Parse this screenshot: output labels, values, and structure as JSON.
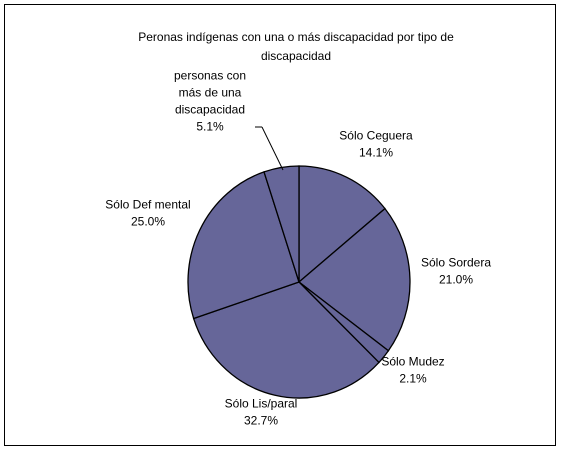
{
  "chart_data": {
    "type": "pie",
    "title_lines": [
      "Peronas indígenas con una o más discapacidad por tipo de",
      "discapacidad"
    ],
    "slices": [
      {
        "label_lines": [
          "Sólo Ceguera"
        ],
        "value": 14.1,
        "value_label": "14.1%"
      },
      {
        "label_lines": [
          "Sólo Sordera"
        ],
        "value": 21.0,
        "value_label": "21.0%"
      },
      {
        "label_lines": [
          "Sólo Mudez"
        ],
        "value": 2.1,
        "value_label": "2.1%"
      },
      {
        "label_lines": [
          "Sólo Lis/paral"
        ],
        "value": 32.7,
        "value_label": "32.7%"
      },
      {
        "label_lines": [
          "Sólo Def mental"
        ],
        "value": 25.0,
        "value_label": "25.0%"
      },
      {
        "label_lines": [
          "personas con",
          "más de una",
          "discapacidad"
        ],
        "value": 5.1,
        "value_label": "5.1%"
      }
    ],
    "slice_color": "#666699",
    "edge_color": "#000000",
    "start": "top",
    "direction": "clockwise",
    "legend": "none"
  }
}
